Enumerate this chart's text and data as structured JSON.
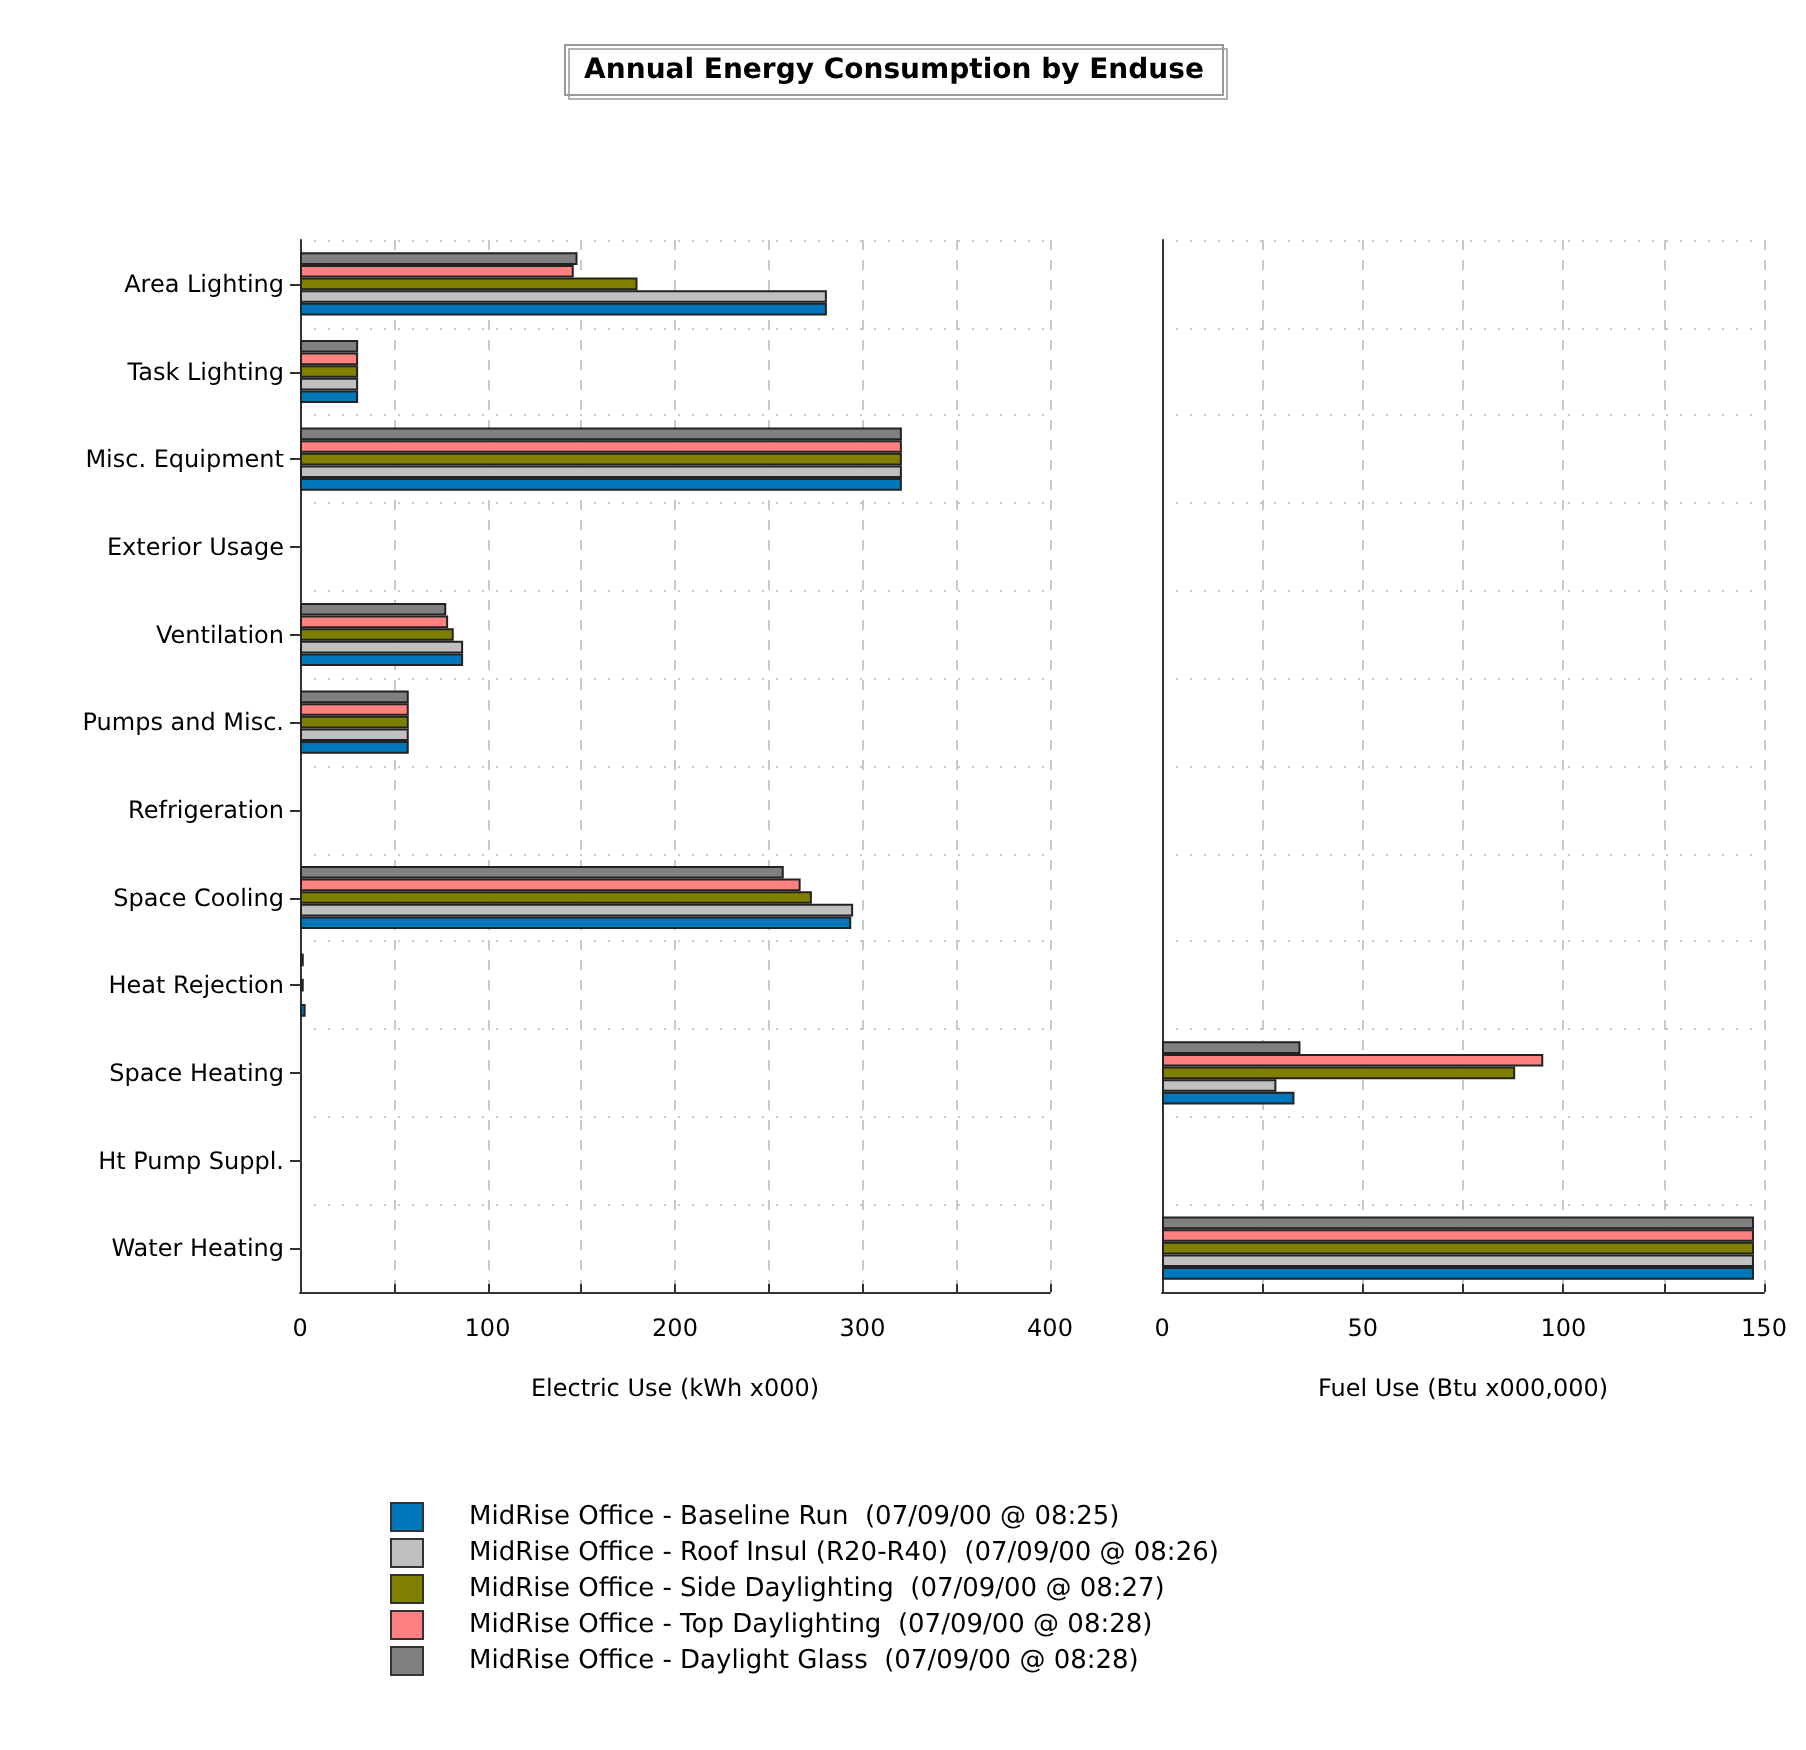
{
  "chart_data": [
    {
      "type": "bar",
      "orientation": "horizontal",
      "title": "Annual Energy Consumption by Enduse",
      "xlabel": "Electric Use (kWh x000)",
      "categories": [
        "Area Lighting",
        "Task Lighting",
        "Misc. Equipment",
        "Exterior Usage",
        "Ventilation",
        "Pumps and Misc.",
        "Refrigeration",
        "Space Cooling",
        "Heat Rejection",
        "Space Heating",
        "Ht Pump Suppl.",
        "Water Heating"
      ],
      "series": [
        {
          "name": "MidRise Office - Baseline Run  (07/09/00 @ 08:25)",
          "color": "#0077bb",
          "values": [
            281,
            31,
            321,
            null,
            87,
            58,
            null,
            294,
            3,
            null,
            null,
            null
          ]
        },
        {
          "name": "MidRise Office - Roof Insul (R20-R40)  (07/09/00 @ 08:26)",
          "color": "#c0c0c0",
          "values": [
            281,
            31,
            321,
            null,
            87,
            58,
            null,
            295,
            null,
            null,
            null,
            null
          ]
        },
        {
          "name": "MidRise Office - Side Daylighting  (07/09/00 @ 08:27)",
          "color": "#808000",
          "values": [
            180,
            31,
            321,
            null,
            82,
            58,
            null,
            273,
            2,
            null,
            null,
            null
          ]
        },
        {
          "name": "MidRise Office - Top Daylighting  (07/09/00 @ 08:28)",
          "color": "#ff8080",
          "values": [
            146,
            31,
            321,
            null,
            79,
            58,
            null,
            267,
            null,
            null,
            null,
            null
          ]
        },
        {
          "name": "MidRise Office - Daylight Glass  (07/09/00 @ 08:28)",
          "color": "#808080",
          "values": [
            148,
            31,
            321,
            null,
            78,
            58,
            null,
            258,
            2,
            null,
            null,
            null
          ]
        }
      ],
      "xlim": [
        0,
        400
      ],
      "xticks": [
        0,
        {
          "value": 50,
          "label": null
        },
        100,
        {
          "value": 150,
          "label": null
        },
        200,
        {
          "value": 250,
          "label": null
        },
        300,
        {
          "value": 350,
          "label": null
        },
        400
      ],
      "grid": true,
      "legend": "bottom"
    },
    {
      "type": "bar",
      "orientation": "horizontal",
      "xlabel": "Fuel Use (Btu x000,000)",
      "categories": [
        null,
        null,
        null,
        null,
        null,
        null,
        null,
        null,
        null,
        null,
        null,
        null
      ],
      "series": [
        {
          "color": "#0077bb",
          "values": [
            null,
            null,
            null,
            null,
            null,
            null,
            null,
            null,
            null,
            33,
            null,
            147.5
          ]
        },
        {
          "color": "#c0c0c0",
          "values": [
            null,
            null,
            null,
            null,
            null,
            null,
            null,
            null,
            null,
            28.5,
            null,
            147.5
          ]
        },
        {
          "color": "#808000",
          "values": [
            null,
            null,
            null,
            null,
            null,
            null,
            null,
            null,
            null,
            88,
            null,
            147.5
          ]
        },
        {
          "color": "#ff8080",
          "values": [
            null,
            null,
            null,
            null,
            null,
            null,
            null,
            null,
            null,
            95,
            null,
            147.5
          ]
        },
        {
          "color": "#808080",
          "values": [
            null,
            null,
            null,
            null,
            null,
            null,
            null,
            null,
            null,
            34.5,
            null,
            147.5
          ]
        }
      ],
      "xlim": [
        0,
        150
      ],
      "xticks": [
        0,
        {
          "value": 25,
          "label": null
        },
        50,
        {
          "value": 75,
          "label": null
        },
        100,
        {
          "value": 125,
          "label": null
        },
        150
      ],
      "grid": true,
      "tick_labels": "x"
    }
  ]
}
